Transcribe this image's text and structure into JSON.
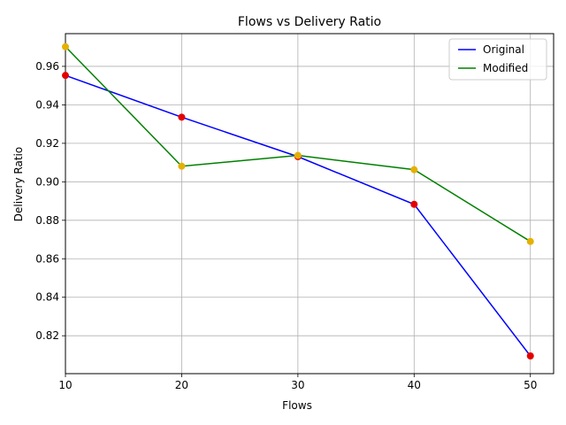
{
  "chart_data": {
    "type": "line",
    "title": "Flows vs Delivery Ratio",
    "xlabel": "Flows",
    "ylabel": "Delivery Ratio",
    "x": [
      10,
      20,
      30,
      40,
      50
    ],
    "xlim": [
      10,
      52
    ],
    "ylim": [
      0.8003,
      0.977
    ],
    "xticks": [
      "10",
      "20",
      "30",
      "40",
      "50"
    ],
    "yticks": [
      "0.82",
      "0.84",
      "0.86",
      "0.88",
      "0.90",
      "0.92",
      "0.94",
      "0.96"
    ],
    "grid": true,
    "legend_position": "top-right",
    "series": [
      {
        "name": "Original",
        "values": [
          0.9553,
          0.9336,
          0.9131,
          0.8883,
          0.8095
        ],
        "line_color": "#0000ff",
        "marker_color": "#e50000"
      },
      {
        "name": "Modified",
        "values": [
          0.9702,
          0.9081,
          0.9137,
          0.9063,
          0.869
        ],
        "line_color": "#008000",
        "marker_color": "#e5b000"
      }
    ]
  }
}
